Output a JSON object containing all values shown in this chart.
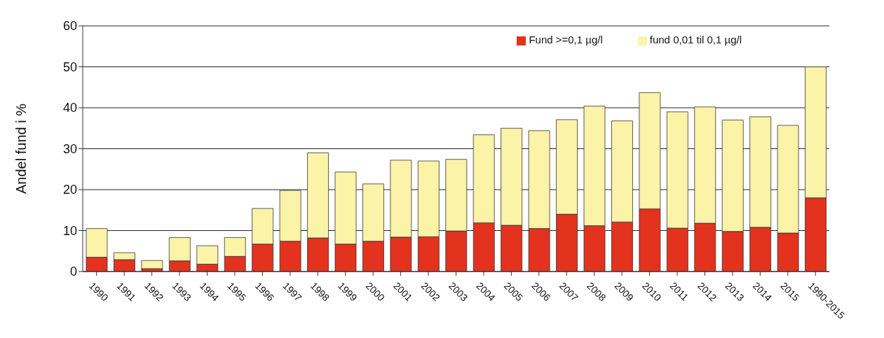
{
  "chart_data": {
    "type": "bar",
    "stacked": true,
    "ylabel": "Andel fund i %",
    "categories": [
      "1990",
      "1991",
      "1992",
      "1993",
      "1994",
      "1995",
      "1996",
      "1997",
      "1998",
      "1999",
      "2000",
      "2001",
      "2002",
      "2003",
      "2004",
      "2005",
      "2006",
      "2007",
      "2008",
      "2009",
      "2010",
      "2011",
      "2012",
      "2013",
      "2014",
      "2015",
      "1990-2015"
    ],
    "series": [
      {
        "name": "Fund >=0,1 µg/l",
        "color": "#e3321e",
        "values": [
          3.5,
          2.9,
          0.7,
          2.6,
          1.8,
          3.7,
          6.7,
          7.4,
          8.2,
          6.7,
          7.4,
          8.4,
          8.5,
          9.9,
          11.9,
          11.3,
          10.5,
          14.0,
          11.2,
          12.1,
          15.3,
          10.6,
          11.8,
          9.8,
          10.8,
          9.4,
          18.0
        ]
      },
      {
        "name": "fund 0,01 til 0,1 µg/l",
        "color": "#faf3a8",
        "values": [
          7.0,
          1.7,
          2.0,
          5.7,
          4.5,
          4.6,
          8.7,
          12.4,
          20.8,
          17.6,
          14.0,
          18.8,
          18.5,
          17.5,
          21.5,
          23.7,
          23.9,
          23.1,
          29.2,
          24.7,
          28.4,
          28.4,
          28.4,
          27.2,
          27.0,
          26.3,
          32.0
        ]
      }
    ],
    "ylim": [
      0,
      60
    ],
    "yticks": [
      0,
      10,
      20,
      30,
      40,
      50,
      60
    ],
    "grid": "y",
    "legend": "top right"
  }
}
